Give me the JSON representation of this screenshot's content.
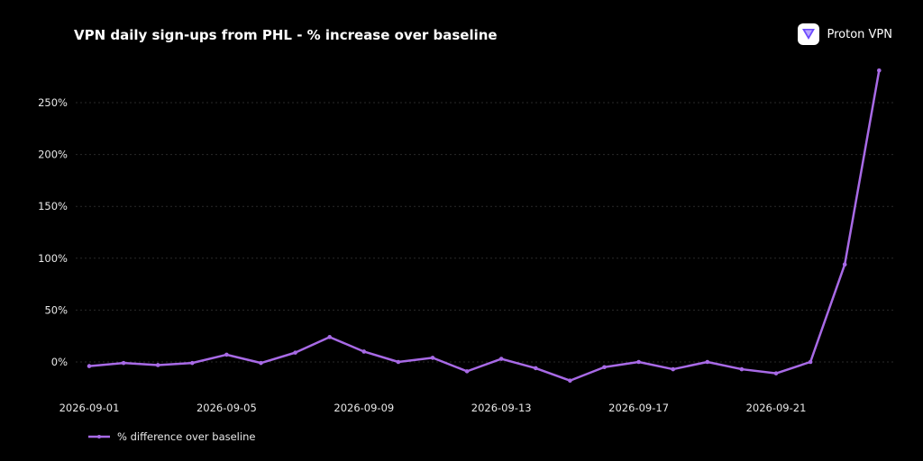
{
  "header": {
    "title": "VPN daily sign-ups from PHL - % increase over baseline",
    "brand_name": "Proton VPN",
    "brand_icon": "proton-vpn-logo-icon"
  },
  "colors": {
    "background": "#000000",
    "line": "#a86ae6",
    "grid": "#2a2a2a",
    "text": "#e8e8e8",
    "logo_purple": "#6d4aff"
  },
  "chart_data": {
    "type": "line",
    "title": "VPN daily sign-ups from PHL - % increase over baseline",
    "xlabel": "",
    "ylabel": "",
    "ylim": [
      -35,
      285
    ],
    "yticks": [
      0,
      50,
      100,
      150,
      200,
      250
    ],
    "ytick_labels": [
      "0%",
      "50%",
      "100%",
      "150%",
      "200%",
      "250%"
    ],
    "xtick_labels": [
      "2026-09-01",
      "2026-09-05",
      "2026-09-09",
      "2026-09-13",
      "2026-09-17",
      "2026-09-21"
    ],
    "grid": true,
    "legend_position": "bottom-left",
    "series": [
      {
        "name": "% difference over baseline",
        "x": [
          "2026-09-01",
          "2026-09-02",
          "2026-09-03",
          "2026-09-04",
          "2026-09-05",
          "2026-09-06",
          "2026-09-07",
          "2026-09-08",
          "2026-09-09",
          "2026-09-10",
          "2026-09-11",
          "2026-09-12",
          "2026-09-13",
          "2026-09-14",
          "2026-09-15",
          "2026-09-16",
          "2026-09-17",
          "2026-09-18",
          "2026-09-19",
          "2026-09-20",
          "2026-09-21",
          "2026-09-22",
          "2026-09-23",
          "2026-09-24"
        ],
        "values": [
          -4,
          -1,
          -3,
          -1,
          7,
          -1,
          9,
          24,
          10,
          0,
          4,
          -9,
          3,
          -6,
          -18,
          -5,
          0,
          -7,
          0,
          -7,
          -11,
          0,
          94,
          281
        ]
      }
    ]
  }
}
